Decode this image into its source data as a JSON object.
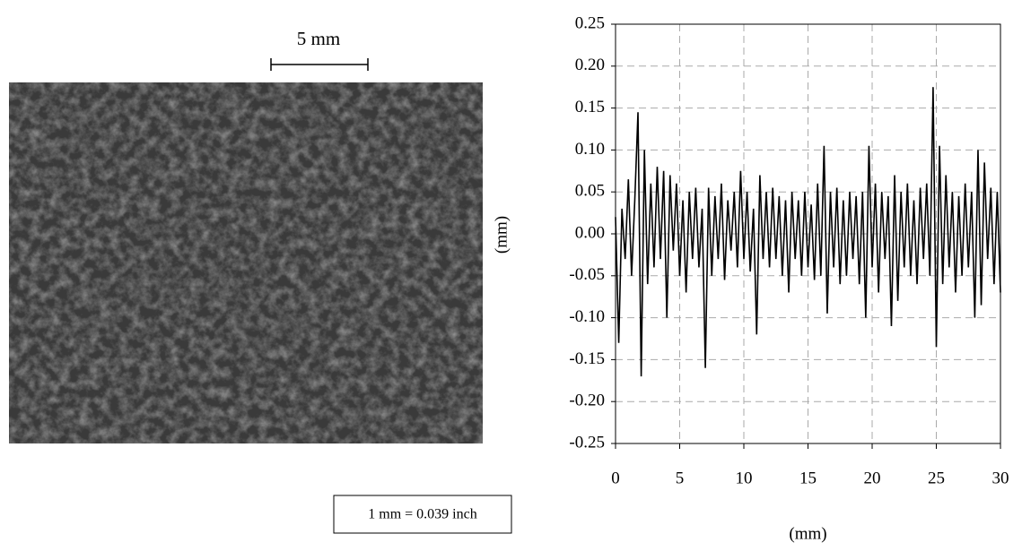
{
  "image": {
    "scale_bar": "5 mm",
    "note": "1 mm = 0.039 inch"
  },
  "chart_data": {
    "type": "line",
    "x_label": "(mm)",
    "y_label": "(mm)",
    "x": [
      0,
      0.25,
      0.5,
      0.75,
      1,
      1.25,
      1.5,
      1.75,
      2,
      2.25,
      2.5,
      2.75,
      3,
      3.25,
      3.5,
      3.75,
      4,
      4.25,
      4.5,
      4.75,
      5,
      5.25,
      5.5,
      5.75,
      6,
      6.25,
      6.5,
      6.75,
      7,
      7.25,
      7.5,
      7.75,
      8,
      8.25,
      8.5,
      8.75,
      9,
      9.25,
      9.5,
      9.75,
      10,
      10.25,
      10.5,
      10.75,
      11,
      11.25,
      11.5,
      11.75,
      12,
      12.25,
      12.5,
      12.75,
      13,
      13.25,
      13.5,
      13.75,
      14,
      14.25,
      14.5,
      14.75,
      15,
      15.25,
      15.5,
      15.75,
      16,
      16.25,
      16.5,
      16.75,
      17,
      17.25,
      17.5,
      17.75,
      18,
      18.25,
      18.5,
      18.75,
      19,
      19.25,
      19.5,
      19.75,
      20,
      20.25,
      20.5,
      20.75,
      21,
      21.25,
      21.5,
      21.75,
      22,
      22.25,
      22.5,
      22.75,
      23,
      23.25,
      23.5,
      23.75,
      24,
      24.25,
      24.5,
      24.75,
      25,
      25.25,
      25.5,
      25.75,
      26,
      26.25,
      26.5,
      26.75,
      27,
      27.25,
      27.5,
      27.75,
      28,
      28.25,
      28.5,
      28.75,
      29,
      29.25,
      29.5,
      29.75,
      30
    ],
    "values": [
      0.02,
      -0.13,
      0.03,
      -0.03,
      0.065,
      -0.05,
      0.04,
      0.145,
      -0.17,
      0.1,
      -0.06,
      0.06,
      -0.04,
      0.08,
      -0.03,
      0.075,
      -0.1,
      0.07,
      -0.02,
      0.06,
      -0.05,
      0.04,
      -0.07,
      0.05,
      -0.03,
      0.055,
      -0.04,
      0.03,
      -0.16,
      0.055,
      -0.05,
      0.045,
      -0.03,
      0.06,
      -0.055,
      0.04,
      -0.02,
      0.05,
      -0.04,
      0.075,
      -0.03,
      0.05,
      -0.045,
      0.03,
      -0.12,
      0.07,
      -0.03,
      0.05,
      -0.04,
      0.055,
      -0.03,
      0.045,
      -0.05,
      0.04,
      -0.07,
      0.05,
      -0.03,
      0.04,
      -0.05,
      0.05,
      -0.04,
      0.035,
      -0.055,
      0.06,
      -0.05,
      0.105,
      -0.095,
      0.05,
      -0.04,
      0.055,
      -0.06,
      0.04,
      -0.05,
      0.05,
      -0.03,
      0.045,
      -0.06,
      0.05,
      -0.1,
      0.105,
      -0.04,
      0.06,
      -0.07,
      0.05,
      -0.03,
      0.045,
      -0.11,
      0.07,
      -0.08,
      0.05,
      -0.04,
      0.06,
      -0.05,
      0.04,
      -0.06,
      0.055,
      -0.03,
      0.06,
      -0.05,
      0.175,
      -0.135,
      0.105,
      -0.06,
      0.07,
      -0.04,
      0.05,
      -0.07,
      0.045,
      -0.05,
      0.06,
      -0.04,
      0.05,
      -0.1,
      0.1,
      -0.085,
      0.085,
      -0.03,
      0.055,
      -0.06,
      0.05,
      -0.07
    ],
    "color": "#000000",
    "xlim": [
      0,
      30
    ],
    "xticks": [
      0,
      5,
      10,
      15,
      20,
      25,
      30
    ],
    "ylim": [
      -0.25,
      0.25
    ],
    "yticks": [
      0.25,
      {
        "value": 0.2,
        "label": "0.20"
      },
      0.15,
      {
        "value": 0.1,
        "label": "0.10"
      },
      0.05,
      {
        "value": 0,
        "label": "0.00"
      },
      -0.05,
      {
        "value": -0.1,
        "label": "-0.10"
      },
      -0.15,
      {
        "value": -0.2,
        "label": "-0.20"
      },
      -0.25
    ],
    "grid": true
  }
}
